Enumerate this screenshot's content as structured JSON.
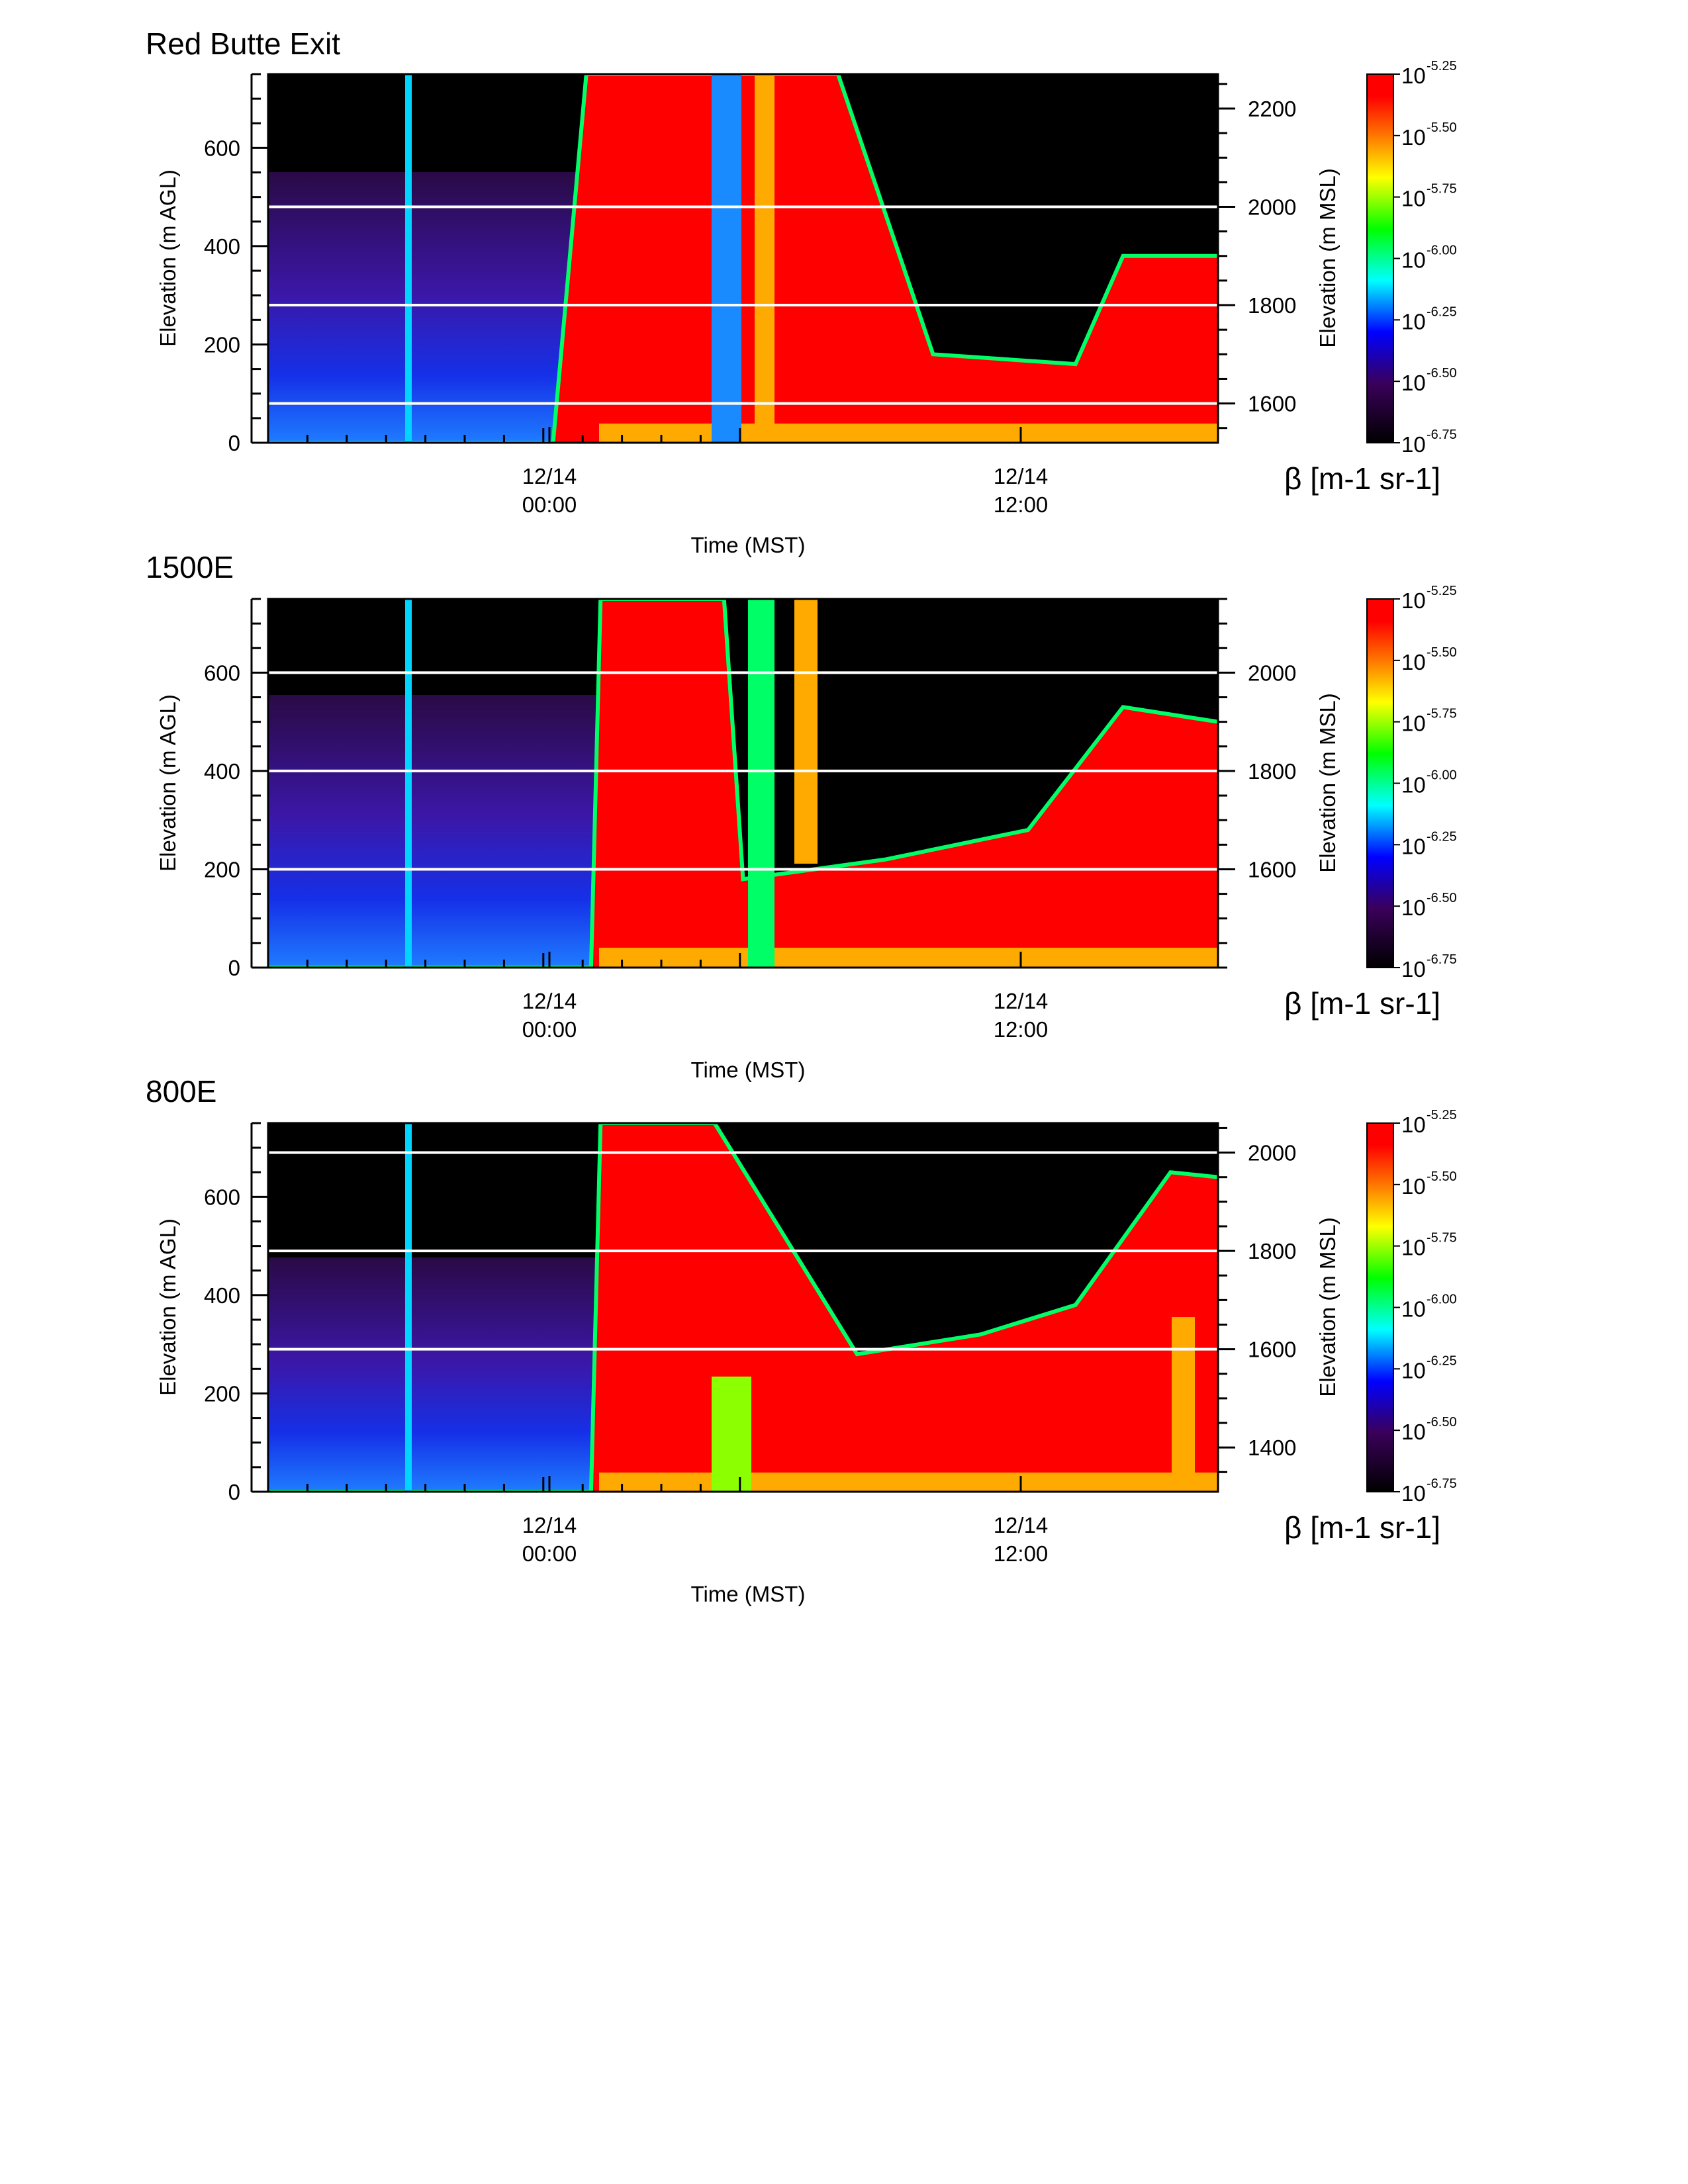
{
  "figure": {
    "colorbar": {
      "ticks": [
        "-5.25",
        "-5.50",
        "-5.75",
        "-6.00",
        "-6.25",
        "-6.50",
        "-6.75"
      ],
      "base": "10",
      "label": "β [m-1 sr-1]",
      "stops": [
        "#ff0000",
        "#ff7a00",
        "#ffff00",
        "#00ff00",
        "#00ffff",
        "#0000ff",
        "#3a005a",
        "#000000"
      ]
    },
    "xaxis": {
      "label": "Time (MST)",
      "ticks": [
        {
          "date": "12/14",
          "time": "00:00"
        },
        {
          "date": "12/14",
          "time": "12:00"
        }
      ]
    }
  },
  "chart_data": [
    {
      "type": "heatmap",
      "title": "Red Butte Exit",
      "ylabel": "Elevation (m AGL)",
      "y2label": "Elevation (m MSL)",
      "ylim": [
        0,
        750
      ],
      "yticks": [
        "0",
        "200",
        "400",
        "600"
      ],
      "y2ticks": [
        "1600",
        "1800",
        "2000",
        "2200"
      ],
      "y2_values": [
        1600,
        1800,
        2000,
        2200
      ],
      "msl_offset": 1520,
      "reference_lines_agl": [
        80,
        280,
        480
      ],
      "profile": {
        "x": [
          0,
          0.14,
          0.145,
          0.22,
          0.3,
          0.335,
          0.345,
          0.47,
          0.6,
          0.7,
          0.85,
          0.9,
          1.0
        ],
        "top_agl": [
          0,
          0,
          0,
          0,
          0,
          750,
          750,
          750,
          750,
          180,
          160,
          380,
          380
        ]
      }
    },
    {
      "type": "heatmap",
      "title": "1500E",
      "ylabel": "Elevation (m AGL)",
      "y2label": "Elevation (m MSL)",
      "ylim": [
        0,
        750
      ],
      "yticks": [
        "0",
        "200",
        "400",
        "600"
      ],
      "y2ticks": [
        "1600",
        "1800",
        "2000"
      ],
      "y2_values": [
        1600,
        1800,
        2000
      ],
      "msl_offset": 1400,
      "reference_lines_agl": [
        200,
        400,
        600
      ],
      "profile": {
        "x": [
          0,
          0.34,
          0.35,
          0.48,
          0.5,
          0.65,
          0.8,
          0.9,
          1.0
        ],
        "top_agl": [
          0,
          0,
          750,
          750,
          180,
          220,
          280,
          530,
          500
        ]
      }
    },
    {
      "type": "heatmap",
      "title": "800E",
      "ylabel": "Elevation (m AGL)",
      "y2label": "Elevation (m MSL)",
      "ylim": [
        0,
        750
      ],
      "yticks": [
        "0",
        "200",
        "400",
        "600"
      ],
      "y2ticks": [
        "1400",
        "1600",
        "1800",
        "2000"
      ],
      "y2_values": [
        1400,
        1600,
        1800,
        2000
      ],
      "msl_offset": 1310,
      "reference_lines_agl": [
        290,
        490,
        690
      ],
      "profile": {
        "x": [
          0,
          0.34,
          0.35,
          0.47,
          0.62,
          0.75,
          0.85,
          0.95,
          1.0
        ],
        "top_agl": [
          0,
          0,
          750,
          750,
          280,
          320,
          380,
          650,
          640
        ]
      }
    }
  ]
}
